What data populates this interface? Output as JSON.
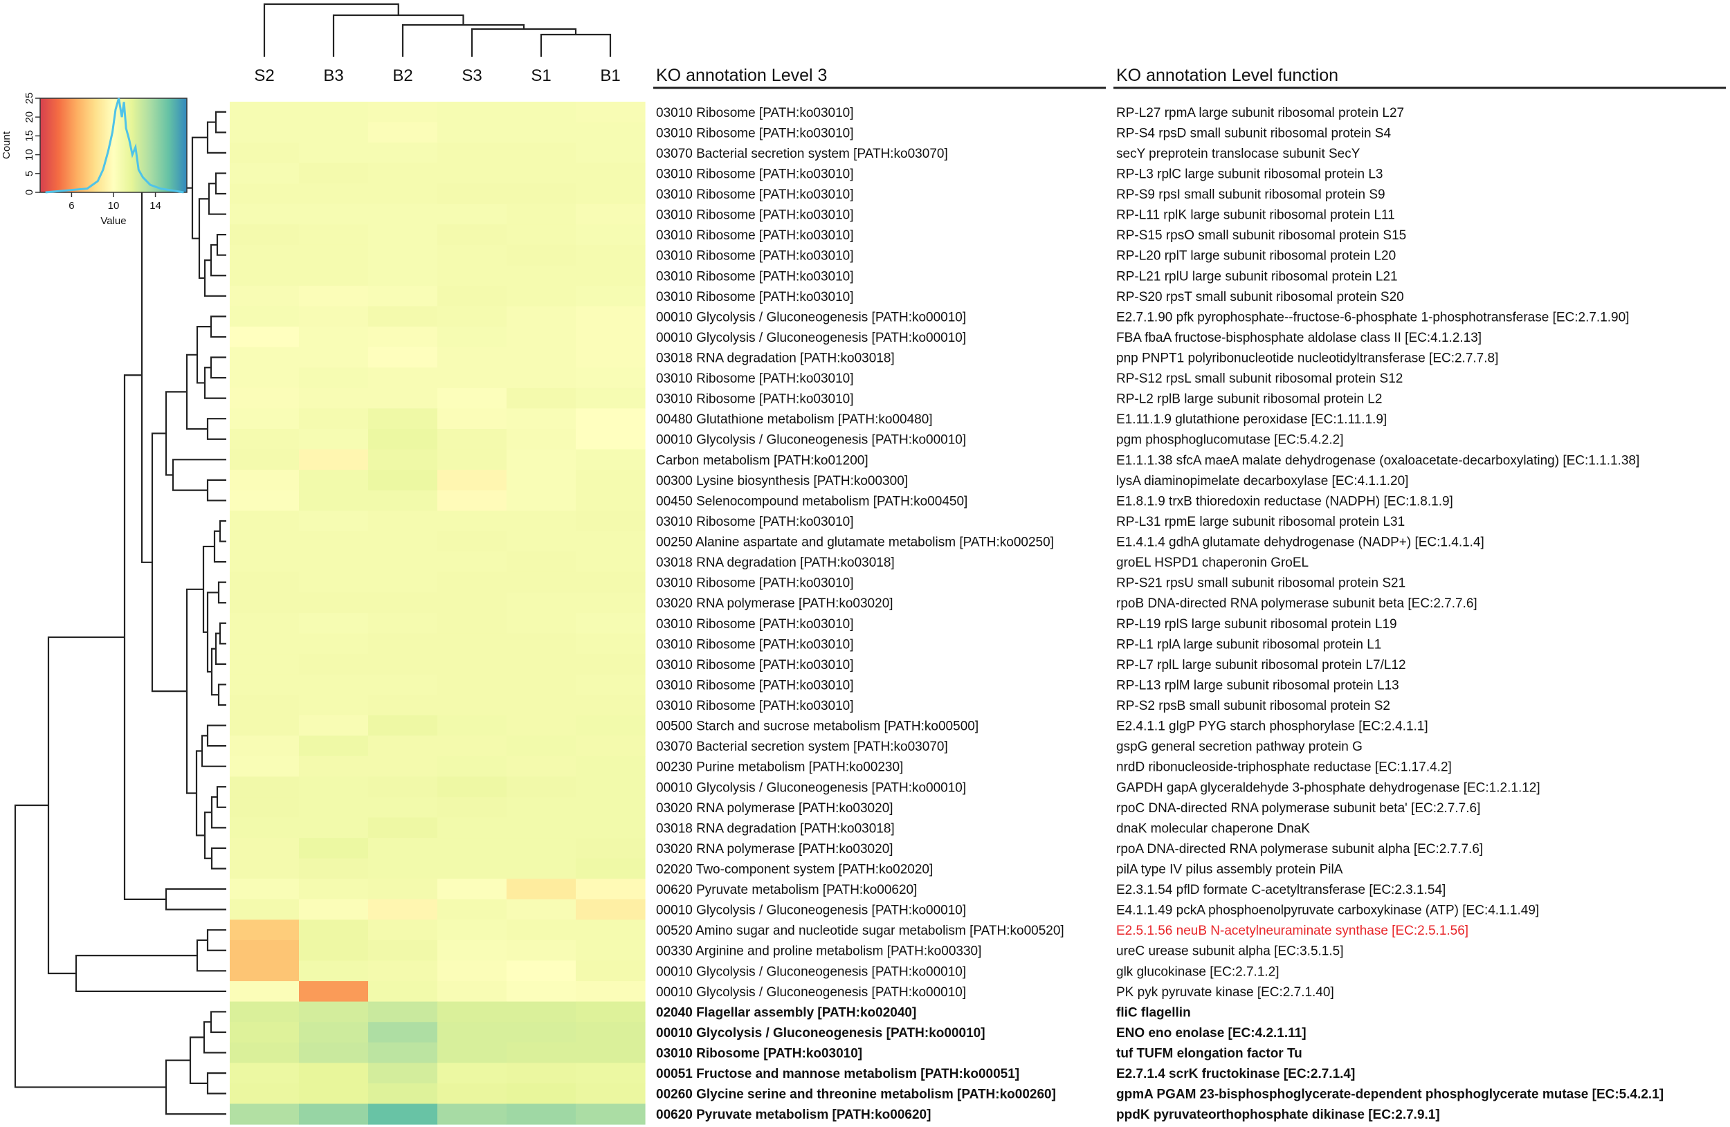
{
  "chart_data": {
    "type": "heatmap",
    "columns": [
      "S2",
      "B3",
      "B2",
      "S3",
      "S1",
      "B1"
    ],
    "header_level3": "KO annotation Level 3",
    "header_function": "KO annotation Level function",
    "color_key": {
      "xlabel": "Value",
      "ylabel": "Count",
      "x_ticks": [
        "6",
        "10",
        "14"
      ],
      "y_ticks": [
        "0",
        "5",
        "10",
        "15",
        "20",
        "25"
      ],
      "xlim": [
        3,
        17
      ],
      "ylim": [
        0,
        25
      ],
      "colors": [
        "#d6404e",
        "#f46d43",
        "#fdae61",
        "#fee08b",
        "#ffffbf",
        "#e6f598",
        "#abdda4",
        "#66c2a5",
        "#3288bd"
      ],
      "histogram": {
        "x": [
          7.5,
          8.5,
          9.0,
          9.5,
          9.9,
          10.2,
          10.5,
          10.8,
          11.0,
          11.2,
          11.5,
          11.8,
          12.1,
          12.4,
          12.8,
          13.5,
          14.5
        ],
        "y": [
          1,
          3,
          6,
          11,
          16,
          22,
          25,
          20,
          24,
          17,
          14,
          10,
          12,
          6,
          4,
          2,
          1
        ]
      }
    },
    "rows": [
      {
        "level3": "03010 Ribosome [PATH:ko03010]",
        "function": "RP-L27 rpmA large subunit ribosomal protein L27",
        "values": [
          10.6,
          10.6,
          10.5,
          10.6,
          10.6,
          10.5
        ]
      },
      {
        "level3": "03010 Ribosome [PATH:ko03010]",
        "function": "RP-S4 rpsD small subunit ribosomal protein S4",
        "values": [
          10.6,
          10.6,
          10.3,
          10.6,
          10.6,
          10.6
        ]
      },
      {
        "level3": "03070 Bacterial secretion system [PATH:ko03070]",
        "function": "secY preprotein translocase subunit SecY",
        "values": [
          10.7,
          10.6,
          10.6,
          10.7,
          10.7,
          10.6
        ]
      },
      {
        "level3": "03010 Ribosome [PATH:ko03010]",
        "function": "RP-L3 rplC large subunit ribosomal protein L3",
        "values": [
          10.6,
          10.8,
          10.7,
          10.7,
          10.7,
          10.7
        ]
      },
      {
        "level3": "03010 Ribosome [PATH:ko03010]",
        "function": "RP-S9 rpsI small subunit ribosomal protein S9",
        "values": [
          10.7,
          10.7,
          10.7,
          10.8,
          10.8,
          10.7
        ]
      },
      {
        "level3": "03010 Ribosome [PATH:ko03010]",
        "function": "RP-L11 rplK large subunit ribosomal protein L11",
        "values": [
          10.6,
          10.6,
          10.6,
          10.6,
          10.7,
          10.5
        ]
      },
      {
        "level3": "03010 Ribosome [PATH:ko03010]",
        "function": "RP-S15 rpsO small subunit ribosomal protein S15",
        "values": [
          10.8,
          10.7,
          10.6,
          10.8,
          10.7,
          10.6
        ]
      },
      {
        "level3": "03010 Ribosome [PATH:ko03010]",
        "function": "RP-L20 rplT large subunit ribosomal protein L20",
        "values": [
          10.7,
          10.7,
          10.6,
          10.7,
          10.8,
          10.7
        ]
      },
      {
        "level3": "03010 Ribosome [PATH:ko03010]",
        "function": "RP-L21 rplU large subunit ribosomal protein L21",
        "values": [
          10.7,
          10.7,
          10.6,
          10.7,
          10.7,
          10.7
        ]
      },
      {
        "level3": "03010 Ribosome [PATH:ko03010]",
        "function": "RP-S20 rpsT small subunit ribosomal protein S20",
        "values": [
          10.5,
          10.3,
          10.4,
          10.8,
          10.7,
          10.6
        ]
      },
      {
        "level3": "00010 Glycolysis / Gluconeogenesis [PATH:ko00010]",
        "function": "E2.7.1.90 pfk pyrophosphate--fructose-6-phosphate 1-phosphotransferase [EC:2.7.1.90]",
        "values": [
          10.6,
          10.5,
          10.8,
          10.7,
          10.5,
          10.3
        ]
      },
      {
        "level3": "00010 Glycolysis / Gluconeogenesis [PATH:ko00010]",
        "function": "FBA fbaA fructose-bisphosphate aldolase class II [EC:4.1.2.13]",
        "values": [
          10.0,
          10.4,
          10.3,
          10.6,
          10.5,
          10.3
        ]
      },
      {
        "level3": "03018 RNA degradation [PATH:ko03018]",
        "function": "pnp PNPT1 polyribonucleotide nucleotidyltransferase [EC:2.7.7.8]",
        "values": [
          10.4,
          10.4,
          10.1,
          10.5,
          10.5,
          10.3
        ]
      },
      {
        "level3": "03010 Ribosome [PATH:ko03010]",
        "function": "RP-S12 rpsL small subunit ribosomal protein S12",
        "values": [
          10.4,
          10.6,
          10.5,
          10.5,
          10.5,
          10.4
        ]
      },
      {
        "level3": "03010 Ribosome [PATH:ko03010]",
        "function": "RP-L2 rplB large subunit ribosomal protein L2",
        "values": [
          10.3,
          10.5,
          10.5,
          10.2,
          10.8,
          10.6
        ]
      },
      {
        "level3": "00480 Glutathione metabolism [PATH:ko00480]",
        "function": "E1.11.1.9 glutathione peroxidase [EC:1.11.1.9]",
        "values": [
          10.4,
          10.7,
          11.1,
          10.3,
          10.4,
          10.0
        ]
      },
      {
        "level3": "00010 Glycolysis / Gluconeogenesis [PATH:ko00010]",
        "function": "pgm phosphoglucomutase [EC:5.4.2.2]",
        "values": [
          10.7,
          10.6,
          11.3,
          10.8,
          10.5,
          10.0
        ]
      },
      {
        "level3": "Carbon metabolism [PATH:ko01200]",
        "function": "E1.1.1.38 sfcA maeA malate dehydrogenase (oxaloacetate-decarboxylating) [EC:1.1.1.38]",
        "values": [
          10.8,
          9.5,
          11.1,
          10.8,
          10.4,
          10.6
        ]
      },
      {
        "level3": "00300 Lysine biosynthesis [PATH:ko00300]",
        "function": "lysA diaminopimelate decarboxylase [EC:4.1.1.20]",
        "values": [
          10.3,
          10.9,
          11.3,
          9.5,
          10.4,
          10.7
        ]
      },
      {
        "level3": "00450 Selenocompound metabolism [PATH:ko00450]",
        "function": "E1.8.1.9 trxB thioredoxin reductase (NADPH) [EC:1.8.1.9]",
        "values": [
          10.2,
          10.9,
          10.9,
          9.8,
          10.4,
          10.7
        ]
      },
      {
        "level3": "03010 Ribosome [PATH:ko03010]",
        "function": "RP-L31 rpmE large subunit ribosomal protein L31",
        "values": [
          10.7,
          10.6,
          10.7,
          10.7,
          10.7,
          10.8
        ]
      },
      {
        "level3": "00250 Alanine aspartate and glutamate metabolism [PATH:ko00250]",
        "function": "E1.4.1.4 gdhA glutamate dehydrogenase (NADP+) [EC:1.4.1.4]",
        "values": [
          10.7,
          10.7,
          10.7,
          10.8,
          10.7,
          10.7
        ]
      },
      {
        "level3": "03018 RNA degradation [PATH:ko03018]",
        "function": "groEL HSPD1 chaperonin GroEL",
        "values": [
          10.7,
          10.7,
          10.7,
          10.7,
          10.8,
          10.7
        ]
      },
      {
        "level3": "03010 Ribosome [PATH:ko03010]",
        "function": "RP-S21 rpsU small subunit ribosomal protein S21",
        "values": [
          10.8,
          10.7,
          10.7,
          10.8,
          10.8,
          10.8
        ]
      },
      {
        "level3": "03020 RNA polymerase [PATH:ko03020]",
        "function": "rpoB DNA-directed RNA polymerase subunit beta [EC:2.7.7.6]",
        "values": [
          10.8,
          10.8,
          10.8,
          10.8,
          10.7,
          10.7
        ]
      },
      {
        "level3": "03010 Ribosome [PATH:ko03010]",
        "function": "RP-L19 rplS large subunit ribosomal protein L19",
        "values": [
          10.7,
          10.6,
          10.7,
          10.8,
          10.7,
          10.6
        ]
      },
      {
        "level3": "03010 Ribosome [PATH:ko03010]",
        "function": "RP-L1 rplA large subunit ribosomal protein L1",
        "values": [
          10.7,
          10.7,
          10.8,
          10.8,
          10.8,
          10.7
        ]
      },
      {
        "level3": "03010 Ribosome [PATH:ko03010]",
        "function": "RP-L7 rplL large subunit ribosomal protein L7/L12",
        "values": [
          10.7,
          10.8,
          10.8,
          10.8,
          10.8,
          10.8
        ]
      },
      {
        "level3": "03010 Ribosome [PATH:ko03010]",
        "function": "RP-L13 rplM large subunit ribosomal protein L13",
        "values": [
          10.7,
          10.7,
          10.7,
          10.8,
          10.8,
          10.7
        ]
      },
      {
        "level3": "03010 Ribosome [PATH:ko03010]",
        "function": "RP-S2 rpsB small subunit ribosomal protein S2",
        "values": [
          10.8,
          10.7,
          10.8,
          10.8,
          10.8,
          10.8
        ]
      },
      {
        "level3": "00500 Starch and sucrose metabolism [PATH:ko00500]",
        "function": "E2.4.1.1 glgP PYG starch phosphorylase [EC:2.4.1.1]",
        "values": [
          10.8,
          10.5,
          11.2,
          10.9,
          10.8,
          10.9
        ]
      },
      {
        "level3": "03070 Bacterial secretion system [PATH:ko03070]",
        "function": "gspG general secretion pathway protein G",
        "values": [
          10.5,
          11.1,
          10.8,
          10.8,
          10.9,
          10.8
        ]
      },
      {
        "level3": "00230 Purine metabolism [PATH:ko00230]",
        "function": "nrdD ribonucleoside-triphosphate reductase [EC:1.17.4.2]",
        "values": [
          10.4,
          10.8,
          10.8,
          10.9,
          10.8,
          10.9
        ]
      },
      {
        "level3": "00010 Glycolysis / Gluconeogenesis [PATH:ko00010]",
        "function": "GAPDH gapA glyceraldehyde 3-phosphate dehydrogenase [EC:1.2.1.12]",
        "values": [
          11.0,
          10.9,
          11.0,
          11.2,
          11.0,
          10.9
        ]
      },
      {
        "level3": "03020 RNA polymerase [PATH:ko03020]",
        "function": "rpoC DNA-directed RNA polymerase subunit beta' [EC:2.7.7.6]",
        "values": [
          11.0,
          10.9,
          10.9,
          11.0,
          10.9,
          10.9
        ]
      },
      {
        "level3": "03018 RNA degradation [PATH:ko03018]",
        "function": "dnaK molecular chaperone DnaK",
        "values": [
          10.9,
          10.9,
          11.2,
          10.9,
          10.9,
          10.9
        ]
      },
      {
        "level3": "03020 RNA polymerase [PATH:ko03020]",
        "function": "rpoA DNA-directed RNA polymerase subunit alpha [EC:2.7.7.6]",
        "values": [
          10.8,
          11.3,
          10.9,
          10.9,
          10.9,
          11.0
        ]
      },
      {
        "level3": "02020 Two-component system [PATH:ko02020]",
        "function": "pilA type IV pilus assembly protein PilA",
        "values": [
          10.8,
          11.0,
          10.9,
          10.9,
          10.9,
          11.1
        ]
      },
      {
        "level3": "00620 Pyruvate metabolism [PATH:ko00620]",
        "function": "E2.3.1.54 pflD formate C-acetyltransferase [EC:2.3.1.54]",
        "values": [
          10.4,
          10.7,
          10.8,
          10.2,
          8.9,
          9.7
        ]
      },
      {
        "level3": "00010 Glycolysis / Gluconeogenesis [PATH:ko00010]",
        "function": "E4.1.1.49 pckA phosphoenolpyruvate carboxykinase (ATP) [EC:4.1.1.49]",
        "values": [
          10.8,
          10.3,
          9.5,
          10.7,
          10.5,
          9.1
        ]
      },
      {
        "level3": "00520 Amino sugar and nucleotide sugar metabolism [PATH:ko00520]",
        "function": "E2.5.1.56 neuB N-acetylneuraminate synthase [EC:2.5.1.56]",
        "values": [
          7.6,
          11.2,
          10.8,
          10.6,
          10.7,
          10.7
        ]
      },
      {
        "level3": "00330 Arginine and proline metabolism [PATH:ko00330]",
        "function": "ureC urease subunit alpha [EC:3.5.1.5]",
        "values": [
          7.3,
          11.2,
          11.0,
          10.4,
          10.5,
          10.7
        ]
      },
      {
        "level3": "00010 Glycolysis / Gluconeogenesis [PATH:ko00010]",
        "function": "glk glucokinase [EC:2.7.1.2]",
        "values": [
          7.3,
          10.9,
          10.8,
          10.3,
          10.0,
          10.8
        ]
      },
      {
        "level3": "00010 Glycolysis / Gluconeogenesis [PATH:ko00010]",
        "function": "PK pyk pyruvate kinase [EC:2.7.1.40]",
        "values": [
          10.3,
          6.0,
          10.9,
          10.5,
          10.2,
          10.3
        ]
      },
      {
        "level3": "02040 Flagellar assembly [PATH:ko02040]",
        "function": "fliC flagellin",
        "values": [
          12.1,
          12.3,
          12.6,
          12.1,
          12.1,
          12.0
        ]
      },
      {
        "level3": "00010 Glycolysis / Gluconeogenesis [PATH:ko00010]",
        "function": "ENO eno enolase [EC:4.2.1.11]",
        "values": [
          12.0,
          12.5,
          13.4,
          12.2,
          12.2,
          12.1
        ]
      },
      {
        "level3": "03010 Ribosome [PATH:ko03010]",
        "function": "tuf TUFM elongation factor Tu",
        "values": [
          12.1,
          12.6,
          13.0,
          12.2,
          12.1,
          12.1
        ]
      },
      {
        "level3": "00051 Fructose and mannose metabolism [PATH:ko00051]",
        "function": "E2.7.1.4 scrK fructokinase [EC:2.7.1.4]",
        "values": [
          11.3,
          11.6,
          12.3,
          11.3,
          11.4,
          11.3
        ]
      },
      {
        "level3": "00260 Glycine serine and threonine metabolism [PATH:ko00260]",
        "function": "gpmA PGAM 23-bisphosphoglycerate-dependent phosphoglycerate mutase [EC:5.4.2.1]",
        "values": [
          11.4,
          11.6,
          12.0,
          11.5,
          11.6,
          11.4
        ]
      },
      {
        "level3": "00620 Pyruvate metabolism [PATH:ko00620]",
        "function": "ppdK pyruvateorthophosphate dikinase [EC:2.7.9.1]",
        "values": [
          13.3,
          14.0,
          15.2,
          13.6,
          13.8,
          13.5
        ]
      }
    ]
  }
}
